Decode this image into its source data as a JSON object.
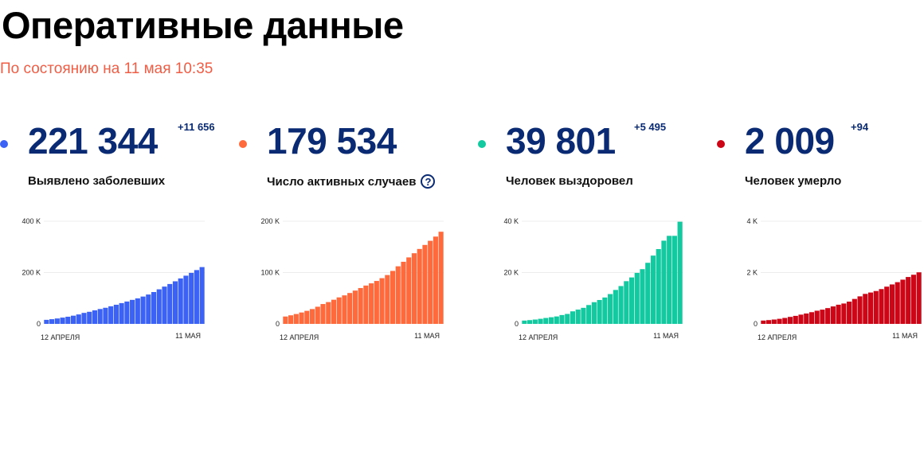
{
  "header": {
    "title": "Оперативные данные",
    "subtitle": "По состоянию на 11 мая 10:35"
  },
  "stats": [
    {
      "value": "221 344",
      "delta": "+11 656",
      "label": "Выявлено заболевших",
      "color": "#3b62f5",
      "dot_color": "#3b62f5",
      "help_icon": false
    },
    {
      "value": "179 534",
      "delta": "",
      "label": "Число активных случаев",
      "color": "#ff6a3d",
      "dot_color": "#ff6a3d",
      "help_icon": true,
      "help_text": "?"
    },
    {
      "value": "39 801",
      "delta": "+5 495",
      "label": "Человек выздоровел",
      "color": "#12c9a0",
      "dot_color": "#12c9a0",
      "help_icon": false
    },
    {
      "value": "2 009",
      "delta": "+94",
      "label": "Человек умерло",
      "color": "#cc0616",
      "dot_color": "#cc0616",
      "help_icon": false
    }
  ],
  "chart_data": [
    {
      "type": "bar",
      "x_start_label": "12 АПРЕЛЯ",
      "x_end_label": "11 МАЯ",
      "ylim": [
        0,
        400000
      ],
      "y_ticks": [
        {
          "v": 0,
          "label": "0"
        },
        {
          "v": 200000,
          "label": "200 K"
        },
        {
          "v": 400000,
          "label": "400 K"
        }
      ],
      "grid": true,
      "values": [
        15770,
        18328,
        21102,
        24490,
        27938,
        32008,
        36793,
        42853,
        47121,
        52763,
        57999,
        62773,
        68622,
        74588,
        80949,
        87147,
        93558,
        99399,
        106498,
        114431,
        124054,
        134686,
        145268,
        155370,
        165929,
        177160,
        187859,
        198676,
        209688,
        221344
      ]
    },
    {
      "type": "bar",
      "x_start_label": "12 АПРЕЛЯ",
      "x_end_label": "11 МАЯ",
      "ylim": [
        0,
        200000
      ],
      "y_ticks": [
        {
          "v": 0,
          "label": "0"
        },
        {
          "v": 100000,
          "label": "100 K"
        },
        {
          "v": 200000,
          "label": "200 K"
        }
      ],
      "grid": true,
      "values": [
        14349,
        16710,
        19238,
        22208,
        25402,
        28915,
        33423,
        38702,
        42470,
        47060,
        51626,
        55581,
        60166,
        64886,
        69824,
        74681,
        79007,
        83634,
        89054,
        95164,
        103190,
        112204,
        121005,
        129547,
        137657,
        145986,
        153817,
        161868,
        170074,
        179534
      ]
    },
    {
      "type": "bar",
      "x_start_label": "12 АПРЕЛЯ",
      "x_end_label": "11 МАЯ",
      "ylim": [
        0,
        40000
      ],
      "y_ticks": [
        {
          "v": 0,
          "label": "0"
        },
        {
          "v": 20000,
          "label": "20 K"
        },
        {
          "v": 40000,
          "label": "40 K"
        }
      ],
      "grid": true,
      "values": [
        1291,
        1470,
        1694,
        1986,
        2304,
        2590,
        2895,
        3446,
        3873,
        4891,
        5568,
        6250,
        7346,
        8456,
        9306,
        10286,
        11619,
        13220,
        14740,
        16639,
        18095,
        19865,
        21327,
        23803,
        26608,
        29145,
        32425,
        34306,
        34306,
        39801
      ]
    },
    {
      "type": "bar",
      "x_start_label": "12 АПРЕЛЯ",
      "x_end_label": "11 МАЯ",
      "ylim": [
        0,
        4000
      ],
      "y_ticks": [
        {
          "v": 0,
          "label": "0"
        },
        {
          "v": 2000,
          "label": "2 K"
        },
        {
          "v": 4000,
          "label": "4 K"
        }
      ],
      "grid": true,
      "values": [
        130,
        148,
        170,
        198,
        232,
        273,
        313,
        361,
        405,
        456,
        513,
        555,
        615,
        681,
        747,
        794,
        867,
        972,
        1073,
        1169,
        1222,
        1280,
        1356,
        1451,
        1537,
        1625,
        1723,
        1827,
        1915,
        2009
      ]
    }
  ]
}
